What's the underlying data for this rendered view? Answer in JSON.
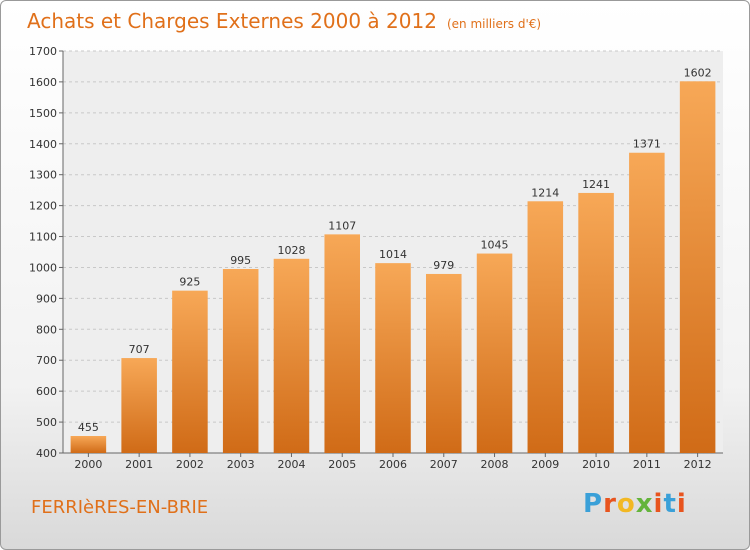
{
  "header": {
    "title": "Achats et Charges Externes 2000 à 2012",
    "subtitle": "(en milliers d'€)"
  },
  "footer": {
    "commune": "FERRIèRES-EN-BRIE",
    "logo": "Proxiti",
    "logo_colors": [
      "#3aa0d8",
      "#e8541e",
      "#f2b823",
      "#64b43c",
      "#e8541e",
      "#3aa0d8",
      "#e8541e"
    ]
  },
  "chart_data": {
    "type": "bar",
    "title": "Achats et Charges Externes 2000 à 2012",
    "subtitle": "(en milliers d'€)",
    "categories": [
      "2000",
      "2001",
      "2002",
      "2003",
      "2004",
      "2005",
      "2006",
      "2007",
      "2008",
      "2009",
      "2010",
      "2011",
      "2012"
    ],
    "values": [
      455,
      707,
      925,
      995,
      1028,
      1107,
      1014,
      979,
      1045,
      1214,
      1241,
      1371,
      1602
    ],
    "ylim": [
      400,
      1700
    ],
    "yticks": [
      400,
      500,
      600,
      700,
      800,
      900,
      1000,
      1100,
      1200,
      1300,
      1400,
      1500,
      1600,
      1700
    ],
    "grid": true,
    "bar_color_top": "#f7a857",
    "bar_color_bottom": "#d06b17"
  }
}
